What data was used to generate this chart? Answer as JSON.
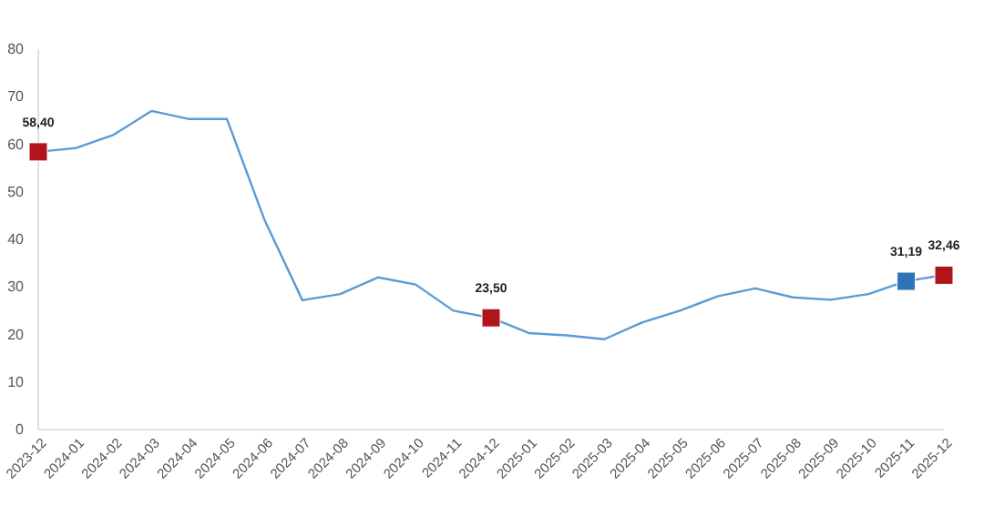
{
  "chart_data": {
    "type": "line",
    "categories": [
      "2023-12",
      "2024-01",
      "2024-02",
      "2024-03",
      "2024-04",
      "2024-05",
      "2024-06",
      "2024-07",
      "2024-08",
      "2024-09",
      "2024-10",
      "2024-11",
      "2024-12",
      "2025-01",
      "2025-02",
      "2025-03",
      "2025-04",
      "2025-05",
      "2025-06",
      "2025-07",
      "2025-08",
      "2025-09",
      "2025-10",
      "2025-11",
      "2025-12"
    ],
    "ylim": [
      0,
      80
    ],
    "yticks": [
      0,
      10,
      20,
      30,
      40,
      50,
      60,
      70,
      80
    ],
    "grid": false,
    "series": [
      {
        "color": "#5b9bd5",
        "marker": "none",
        "values": [
          58.4,
          59.2,
          62,
          67,
          65.3,
          65.3,
          44,
          27.2,
          28.5,
          32,
          30.5,
          25,
          23.5,
          20.3,
          19.8,
          19,
          22.5,
          25,
          28,
          29.7,
          27.8,
          27.3,
          28.5,
          31.2,
          32.5
        ]
      },
      {
        "type": "scatter",
        "marker": "square",
        "colors": [
          "#b0151d",
          null,
          null,
          null,
          null,
          null,
          null,
          null,
          null,
          null,
          null,
          null,
          "#b0151d",
          null,
          null,
          null,
          null,
          null,
          null,
          null,
          null,
          null,
          null,
          "#2e75b6",
          "#b0151d"
        ],
        "values": [
          58.4,
          null,
          null,
          null,
          null,
          null,
          null,
          null,
          null,
          null,
          null,
          null,
          23.5,
          null,
          null,
          null,
          null,
          null,
          null,
          null,
          null,
          null,
          null,
          31.19,
          32.46
        ],
        "value_labels": [
          "58,40",
          null,
          null,
          null,
          null,
          null,
          null,
          null,
          null,
          null,
          null,
          null,
          "23,50",
          null,
          null,
          null,
          null,
          null,
          null,
          null,
          null,
          null,
          null,
          "31,19",
          "32,46"
        ]
      }
    ]
  }
}
